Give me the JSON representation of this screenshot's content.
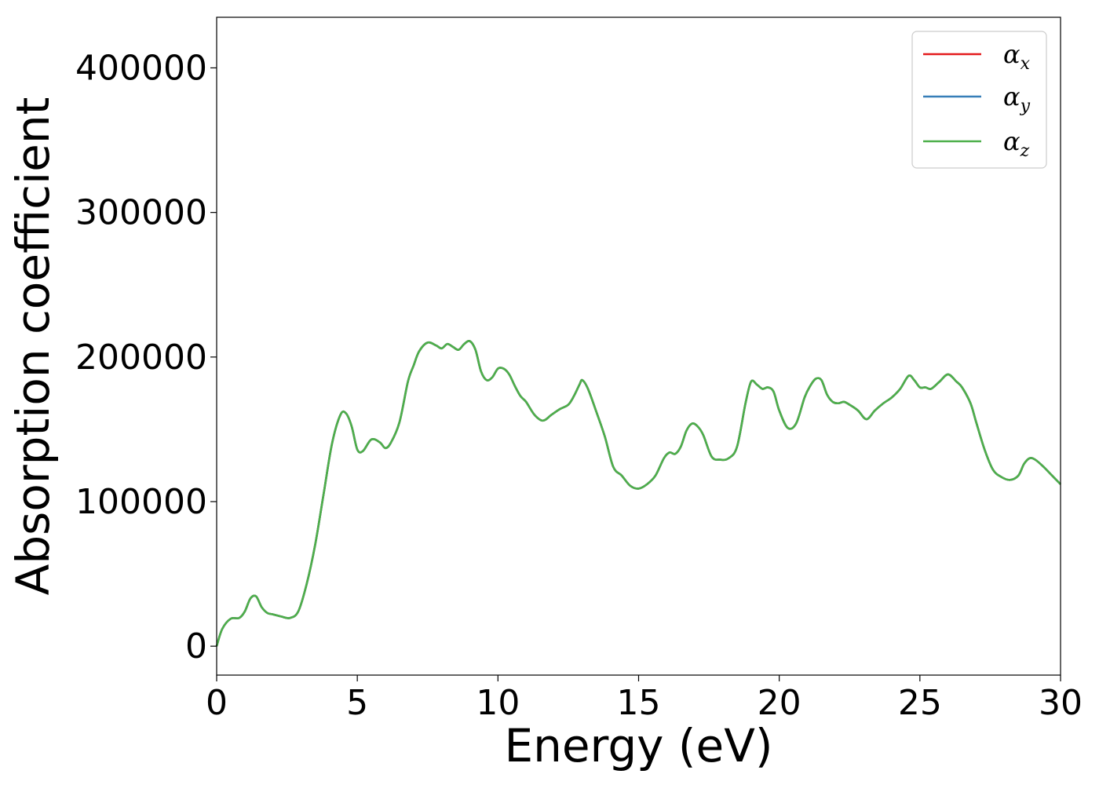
{
  "chart_data": {
    "type": "line",
    "title": "",
    "xlabel": "Energy (eV)",
    "ylabel": "Absorption coefficient",
    "xlim": [
      0,
      30
    ],
    "ylim": [
      -20000,
      435000
    ],
    "xticks": [
      0,
      5,
      10,
      15,
      20,
      25,
      30
    ],
    "xtick_labels": [
      "0",
      "5",
      "10",
      "15",
      "20",
      "25",
      "30"
    ],
    "yticks": [
      0,
      100000,
      200000,
      300000,
      400000
    ],
    "ytick_labels": [
      "0",
      "100000",
      "200000",
      "300000",
      "400000"
    ],
    "grid": false,
    "legend_position": "top-right",
    "x": [
      0,
      0.2,
      0.5,
      0.8,
      1.0,
      1.2,
      1.4,
      1.6,
      1.8,
      2.0,
      2.3,
      2.6,
      2.9,
      3.2,
      3.5,
      3.8,
      4.1,
      4.4,
      4.6,
      4.8,
      5.0,
      5.2,
      5.5,
      5.8,
      6.0,
      6.2,
      6.5,
      6.8,
      7.0,
      7.2,
      7.5,
      7.8,
      8.0,
      8.2,
      8.4,
      8.6,
      8.8,
      9.0,
      9.2,
      9.4,
      9.6,
      9.8,
      10.0,
      10.2,
      10.4,
      10.6,
      10.8,
      11.0,
      11.3,
      11.6,
      11.9,
      12.2,
      12.5,
      12.7,
      12.9,
      13.0,
      13.2,
      13.5,
      13.8,
      14.1,
      14.4,
      14.7,
      15.0,
      15.3,
      15.6,
      15.9,
      16.1,
      16.3,
      16.5,
      16.7,
      16.9,
      17.1,
      17.3,
      17.6,
      17.9,
      18.2,
      18.5,
      18.8,
      19.0,
      19.2,
      19.4,
      19.6,
      19.8,
      20.0,
      20.3,
      20.6,
      20.9,
      21.1,
      21.3,
      21.5,
      21.7,
      21.9,
      22.1,
      22.3,
      22.5,
      22.8,
      23.1,
      23.4,
      23.7,
      24.0,
      24.3,
      24.6,
      24.8,
      25.0,
      25.2,
      25.4,
      25.7,
      26.0,
      26.3,
      26.5,
      26.8,
      27.0,
      27.3,
      27.6,
      27.9,
      28.2,
      28.5,
      28.7,
      28.9,
      29.1,
      29.4,
      29.7,
      30.0
    ],
    "series": [
      {
        "name": "αx",
        "color": "#e41a1c",
        "values": [
          0,
          12000,
          19000,
          19500,
          24000,
          33000,
          34500,
          27000,
          23000,
          22000,
          20500,
          19500,
          24000,
          43000,
          70000,
          105000,
          140000,
          160000,
          161000,
          152000,
          136000,
          135000,
          143000,
          141000,
          137000,
          141000,
          155000,
          183000,
          194000,
          204000,
          210000,
          208000,
          206000,
          209000,
          207000,
          205000,
          209000,
          211000,
          205000,
          190000,
          184000,
          186000,
          192000,
          192000,
          188000,
          180000,
          173000,
          169000,
          160000,
          156000,
          160000,
          164000,
          167000,
          173000,
          181000,
          184000,
          178000,
          162000,
          145000,
          124000,
          118000,
          111000,
          109000,
          112000,
          118000,
          130000,
          134000,
          133000,
          138000,
          149000,
          154000,
          152000,
          146000,
          131000,
          129000,
          130000,
          138000,
          168000,
          183000,
          181000,
          178000,
          179000,
          176000,
          163000,
          151000,
          154000,
          172000,
          180000,
          185000,
          184000,
          174000,
          169000,
          168000,
          169000,
          167000,
          163000,
          157000,
          163000,
          168000,
          172000,
          178000,
          187000,
          184000,
          179000,
          179000,
          178000,
          183000,
          188000,
          183000,
          179000,
          168000,
          155000,
          136000,
          122000,
          117000,
          115000,
          118000,
          126000,
          130000,
          129000,
          124000,
          118000,
          112000
        ]
      },
      {
        "name": "αy",
        "color": "#377eb8",
        "values": [
          0,
          12000,
          19000,
          19500,
          24000,
          33000,
          34500,
          27000,
          23000,
          22000,
          20500,
          19500,
          24000,
          43000,
          70000,
          105000,
          140000,
          160000,
          161000,
          152000,
          136000,
          135000,
          143000,
          141000,
          137000,
          141000,
          155000,
          183000,
          194000,
          204000,
          210000,
          208000,
          206000,
          209000,
          207000,
          205000,
          209000,
          211000,
          205000,
          190000,
          184000,
          186000,
          192000,
          192000,
          188000,
          180000,
          173000,
          169000,
          160000,
          156000,
          160000,
          164000,
          167000,
          173000,
          181000,
          184000,
          178000,
          162000,
          145000,
          124000,
          118000,
          111000,
          109000,
          112000,
          118000,
          130000,
          134000,
          133000,
          138000,
          149000,
          154000,
          152000,
          146000,
          131000,
          129000,
          130000,
          138000,
          168000,
          183000,
          181000,
          178000,
          179000,
          176000,
          163000,
          151000,
          154000,
          172000,
          180000,
          185000,
          184000,
          174000,
          169000,
          168000,
          169000,
          167000,
          163000,
          157000,
          163000,
          168000,
          172000,
          178000,
          187000,
          184000,
          179000,
          179000,
          178000,
          183000,
          188000,
          183000,
          179000,
          168000,
          155000,
          136000,
          122000,
          117000,
          115000,
          118000,
          126000,
          130000,
          129000,
          124000,
          118000,
          112000
        ]
      },
      {
        "name": "αz",
        "color": "#4daf4a",
        "values": [
          0,
          12000,
          19000,
          19500,
          24000,
          33000,
          34500,
          27000,
          23000,
          22000,
          20500,
          19500,
          24000,
          43000,
          70000,
          105000,
          140000,
          160000,
          161000,
          152000,
          136000,
          135000,
          143000,
          141000,
          137000,
          141000,
          155000,
          183000,
          194000,
          204000,
          210000,
          208000,
          206000,
          209000,
          207000,
          205000,
          209000,
          211000,
          205000,
          190000,
          184000,
          186000,
          192000,
          192000,
          188000,
          180000,
          173000,
          169000,
          160000,
          156000,
          160000,
          164000,
          167000,
          173000,
          181000,
          184000,
          178000,
          162000,
          145000,
          124000,
          118000,
          111000,
          109000,
          112000,
          118000,
          130000,
          134000,
          133000,
          138000,
          149000,
          154000,
          152000,
          146000,
          131000,
          129000,
          130000,
          138000,
          168000,
          183000,
          181000,
          178000,
          179000,
          176000,
          163000,
          151000,
          154000,
          172000,
          180000,
          185000,
          184000,
          174000,
          169000,
          168000,
          169000,
          167000,
          163000,
          157000,
          163000,
          168000,
          172000,
          178000,
          187000,
          184000,
          179000,
          179000,
          178000,
          183000,
          188000,
          183000,
          179000,
          168000,
          155000,
          136000,
          122000,
          117000,
          115000,
          118000,
          126000,
          130000,
          129000,
          124000,
          118000,
          112000
        ]
      }
    ],
    "legend": [
      {
        "symbol": "α",
        "subscript": "x",
        "color": "#e41a1c"
      },
      {
        "symbol": "α",
        "subscript": "y",
        "color": "#377eb8"
      },
      {
        "symbol": "α",
        "subscript": "z",
        "color": "#4daf4a"
      }
    ]
  }
}
